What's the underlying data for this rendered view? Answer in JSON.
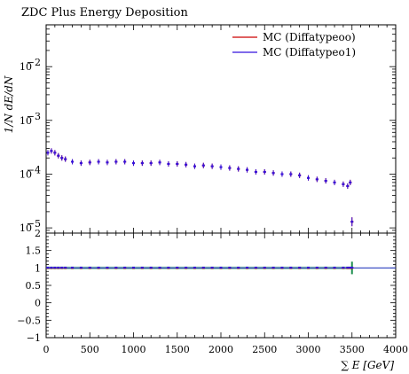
{
  "chart_data": {
    "type": "scatter",
    "title": "ZDC Plus Energy Deposition",
    "xlabel": "∑ E [GeV]",
    "ylabel": "1/N dE/dN",
    "xlim": [
      0,
      4000
    ],
    "x_ticks": [
      "0",
      "500",
      "1000",
      "1500",
      "2000",
      "2500",
      "3000",
      "3500",
      "4000"
    ],
    "main": {
      "yscale": "log",
      "ylim": [
        8e-06,
        0.06
      ],
      "y_ticks": [
        {
          "value": 1e-05,
          "base": "10",
          "exp": "−5"
        },
        {
          "value": 0.0001,
          "base": "10",
          "exp": "−4"
        },
        {
          "value": 0.001,
          "base": "10",
          "exp": "−3"
        },
        {
          "value": 0.01,
          "base": "10",
          "exp": "−2"
        }
      ]
    },
    "ratio": {
      "ylim": [
        -1,
        2
      ],
      "y_ticks": [
        "−1",
        "−0.5",
        "0",
        "0.5",
        "1",
        "1.5",
        "2"
      ],
      "reference": 1
    },
    "legend_position": "top-right",
    "series": [
      {
        "name": "MC (Diffatypeoo)",
        "color": "#cc0000",
        "x": [
          20,
          60,
          100,
          140,
          180,
          220,
          300,
          400,
          500,
          600,
          700,
          800,
          900,
          1000,
          1100,
          1200,
          1300,
          1400,
          1500,
          1600,
          1700,
          1800,
          1900,
          2000,
          2100,
          2200,
          2300,
          2400,
          2500,
          2600,
          2700,
          2800,
          2900,
          3000,
          3100,
          3200,
          3300,
          3400,
          3450,
          3480,
          3500
        ],
        "y": [
          0.00025,
          0.00027,
          0.00025,
          0.00022,
          0.0002,
          0.00019,
          0.00017,
          0.00016,
          0.000165,
          0.00017,
          0.000165,
          0.00017,
          0.00017,
          0.00016,
          0.00016,
          0.00016,
          0.000165,
          0.000155,
          0.000155,
          0.00015,
          0.00014,
          0.000145,
          0.00014,
          0.000135,
          0.00013,
          0.000125,
          0.00012,
          0.00011,
          0.00011,
          0.000105,
          0.0001,
          0.0001,
          9.5e-05,
          8.5e-05,
          8e-05,
          7.5e-05,
          7e-05,
          6.5e-05,
          6e-05,
          7e-05,
          1.3e-05
        ]
      },
      {
        "name": "MC (Diffatypeo1)",
        "color": "#3311dd",
        "x": [
          20,
          60,
          100,
          140,
          180,
          220,
          300,
          400,
          500,
          600,
          700,
          800,
          900,
          1000,
          1100,
          1200,
          1300,
          1400,
          1500,
          1600,
          1700,
          1800,
          1900,
          2000,
          2100,
          2200,
          2300,
          2400,
          2500,
          2600,
          2700,
          2800,
          2900,
          3000,
          3100,
          3200,
          3300,
          3400,
          3450,
          3480,
          3500
        ],
        "y": [
          0.00025,
          0.00027,
          0.00025,
          0.00022,
          0.0002,
          0.00019,
          0.00017,
          0.00016,
          0.000165,
          0.00017,
          0.000165,
          0.00017,
          0.00017,
          0.00016,
          0.00016,
          0.00016,
          0.000165,
          0.000155,
          0.000155,
          0.00015,
          0.00014,
          0.000145,
          0.00014,
          0.000135,
          0.00013,
          0.000125,
          0.00012,
          0.00011,
          0.00011,
          0.000105,
          0.0001,
          0.0001,
          9.5e-05,
          8.5e-05,
          8e-05,
          7.5e-05,
          7e-05,
          6.5e-05,
          6e-05,
          7e-05,
          1.3e-05
        ]
      }
    ]
  }
}
